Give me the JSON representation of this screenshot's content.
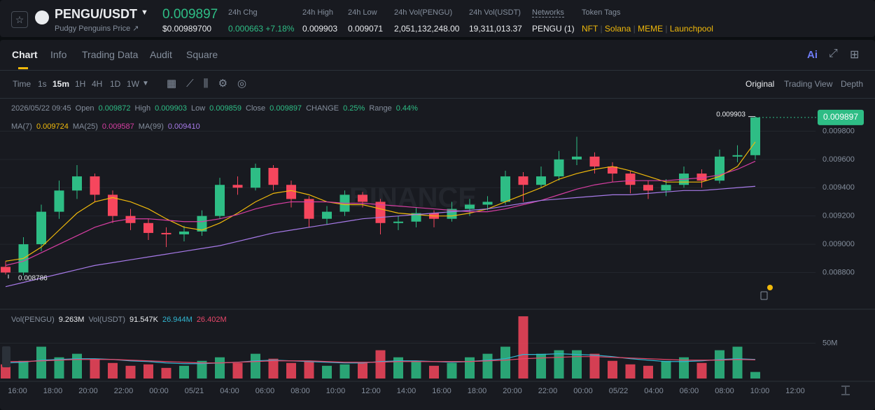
{
  "header": {
    "pair": "PENGU/USDT",
    "name_link": "Pudgy Penguins Price",
    "price": "0.009897",
    "price_usd": "$0.00989700",
    "stats": [
      {
        "label": "24h Chg",
        "value": "0.000663 +7.18%"
      },
      {
        "label": "24h High",
        "value": "0.009903"
      },
      {
        "label": "24h Low",
        "value": "0.009071"
      },
      {
        "label": "24h Vol(PENGU)",
        "value": "2,051,132,248.00"
      },
      {
        "label": "24h Vol(USDT)",
        "value": "19,311,013.37"
      }
    ],
    "networks": {
      "label": "Networks",
      "value": "PENGU (1)"
    },
    "token_tags": {
      "label": "Token Tags",
      "items": [
        "NFT",
        "Solana",
        "MEME",
        "Launchpool"
      ]
    }
  },
  "tabs": [
    "Chart",
    "Info",
    "Trading Data",
    "Audit",
    "Square"
  ],
  "ai_button": "Ai",
  "toolbar": {
    "time_label": "Time",
    "intervals": [
      "1s",
      "15m",
      "1H",
      "4H",
      "1D",
      "1W"
    ],
    "views": [
      "Original",
      "Trading View",
      "Depth"
    ]
  },
  "chart_data": {
    "type": "candlestick",
    "watermark": "BINANCE",
    "legend": {
      "date": "2026/05/22 09:45",
      "items": [
        {
          "label": "Open",
          "value": "0.009872"
        },
        {
          "label": "High",
          "value": "0.009903"
        },
        {
          "label": "Low",
          "value": "0.009859"
        },
        {
          "label": "Close",
          "value": "0.009897"
        },
        {
          "label": "CHANGE",
          "value": "0.25%"
        },
        {
          "label": "Range",
          "value": "0.44%"
        }
      ]
    },
    "x_labels": [
      "16:00",
      "18:00",
      "20:00",
      "22:00",
      "00:00",
      "05/21",
      "04:00",
      "06:00",
      "08:00",
      "10:00",
      "12:00",
      "14:00",
      "16:00",
      "18:00",
      "20:00",
      "22:00",
      "00:00",
      "05/22",
      "04:00",
      "06:00",
      "08:00",
      "10:00",
      "12:00"
    ],
    "open": [
      0.00884,
      0.0088,
      0.009,
      0.00923,
      0.00938,
      0.00948,
      0.00935,
      0.0092,
      0.00915,
      0.00908,
      0.00907,
      0.00909,
      0.0092,
      0.00942,
      0.0094,
      0.00954,
      0.00942,
      0.00932,
      0.00918,
      0.00923,
      0.00935,
      0.0093,
      0.00915,
      0.00916,
      0.00922,
      0.00918,
      0.00925,
      0.00928,
      0.0093,
      0.00948,
      0.00942,
      0.00948,
      0.0096,
      0.00962,
      0.00955,
      0.0095,
      0.00942,
      0.00938,
      0.00942,
      0.0095,
      0.00945,
      0.00962,
      0.00963
    ],
    "high": [
      0.00888,
      0.00905,
      0.00928,
      0.00945,
      0.00956,
      0.0095,
      0.00938,
      0.00925,
      0.00918,
      0.00912,
      0.00913,
      0.00924,
      0.00947,
      0.00948,
      0.00957,
      0.00956,
      0.00945,
      0.00934,
      0.00927,
      0.00938,
      0.00937,
      0.00932,
      0.0092,
      0.00926,
      0.00924,
      0.0093,
      0.00932,
      0.00934,
      0.00952,
      0.00951,
      0.00955,
      0.00966,
      0.00976,
      0.00965,
      0.00958,
      0.00952,
      0.00945,
      0.00946,
      0.00955,
      0.00953,
      0.00967,
      0.0097,
      0.009903
    ],
    "low": [
      0.008786,
      0.00878,
      0.00895,
      0.00918,
      0.00932,
      0.0093,
      0.00915,
      0.0091,
      0.00903,
      0.00898,
      0.00902,
      0.00906,
      0.00918,
      0.00935,
      0.00938,
      0.00938,
      0.00926,
      0.00912,
      0.00914,
      0.0092,
      0.00926,
      0.00907,
      0.0091,
      0.00912,
      0.00912,
      0.00916,
      0.0092,
      0.00924,
      0.00928,
      0.0093,
      0.0094,
      0.00945,
      0.00956,
      0.0095,
      0.00944,
      0.00936,
      0.00932,
      0.00934,
      0.0094,
      0.0094,
      0.00943,
      0.00958,
      0.0096
    ],
    "close": [
      0.0088,
      0.009,
      0.00923,
      0.00938,
      0.00948,
      0.00935,
      0.0092,
      0.00915,
      0.00908,
      0.00907,
      0.00909,
      0.0092,
      0.00942,
      0.0094,
      0.00954,
      0.00942,
      0.00932,
      0.00918,
      0.00923,
      0.00935,
      0.0093,
      0.00915,
      0.00916,
      0.00922,
      0.00918,
      0.00925,
      0.00928,
      0.0093,
      0.00948,
      0.00942,
      0.00948,
      0.0096,
      0.00962,
      0.00955,
      0.0095,
      0.00942,
      0.00938,
      0.00942,
      0.0095,
      0.00945,
      0.00962,
      0.00963,
      0.009897
    ],
    "ylim": [
      0.00855,
      0.01002
    ],
    "yticks": [
      {
        "value": 0.0088,
        "label": "0.008800"
      },
      {
        "value": 0.009,
        "label": "0.009000"
      },
      {
        "value": 0.0092,
        "label": "0.009200"
      },
      {
        "value": 0.0094,
        "label": "0.009400"
      },
      {
        "value": 0.0096,
        "label": "0.009600"
      },
      {
        "value": 0.0098,
        "label": "0.009800"
      }
    ],
    "up_color": "#2ebd85",
    "down_color": "#f6465d",
    "ma": [
      {
        "name": "MA(7)",
        "color": "#f0b90b",
        "value_label": "0.009724",
        "values": [
          0.00888,
          0.0089,
          0.00898,
          0.0091,
          0.00922,
          0.0093,
          0.00933,
          0.0093,
          0.00925,
          0.00918,
          0.00912,
          0.0091,
          0.00915,
          0.00922,
          0.0093,
          0.00936,
          0.00938,
          0.00935,
          0.0093,
          0.00928,
          0.00928,
          0.00925,
          0.00922,
          0.00921,
          0.0092,
          0.0092,
          0.00922,
          0.00925,
          0.0093,
          0.00935,
          0.0094,
          0.00946,
          0.0095,
          0.00953,
          0.00955,
          0.00952,
          0.00948,
          0.00944,
          0.00944,
          0.00944,
          0.00948,
          0.00955,
          0.009724
        ]
      },
      {
        "name": "MA(25)",
        "color": "#d63ea2",
        "value_label": "0.009587",
        "values": [
          0.00885,
          0.00888,
          0.00894,
          0.009,
          0.00906,
          0.00912,
          0.00916,
          0.00918,
          0.00918,
          0.00917,
          0.00916,
          0.00916,
          0.00918,
          0.00921,
          0.00925,
          0.00928,
          0.0093,
          0.0093,
          0.0093,
          0.00929,
          0.00929,
          0.00928,
          0.00927,
          0.00926,
          0.00925,
          0.00924,
          0.00923,
          0.00923,
          0.00925,
          0.00928,
          0.00931,
          0.00935,
          0.00939,
          0.00942,
          0.00944,
          0.00945,
          0.00945,
          0.00945,
          0.00946,
          0.00947,
          0.00949,
          0.00953,
          0.009587
        ]
      },
      {
        "name": "MA(99)",
        "color": "#a77ae8",
        "value_label": "0.009410",
        "values": [
          0.0087,
          0.00873,
          0.00876,
          0.00879,
          0.00882,
          0.00885,
          0.00887,
          0.00889,
          0.00891,
          0.00893,
          0.00895,
          0.00897,
          0.00899,
          0.00902,
          0.00905,
          0.00908,
          0.0091,
          0.00912,
          0.00914,
          0.00916,
          0.00918,
          0.00919,
          0.0092,
          0.00921,
          0.00922,
          0.00923,
          0.00924,
          0.00925,
          0.00927,
          0.00929,
          0.00931,
          0.00932,
          0.00933,
          0.00934,
          0.00935,
          0.00935,
          0.00936,
          0.00937,
          0.00938,
          0.00938,
          0.00939,
          0.0094,
          0.00941
        ]
      }
    ],
    "volume": {
      "legend": [
        {
          "label": "Vol(PENGU)",
          "value": "9.263M"
        },
        {
          "label": "Vol(USDT)",
          "value": "91.547K"
        }
      ],
      "ylim": [
        0,
        95
      ],
      "yticks": [
        {
          "value": 50,
          "label": "50M"
        }
      ],
      "values": [
        20,
        25,
        45,
        30,
        35,
        28,
        22,
        18,
        20,
        15,
        18,
        25,
        30,
        22,
        35,
        28,
        22,
        25,
        18,
        20,
        22,
        40,
        30,
        25,
        18,
        22,
        30,
        35,
        45,
        88,
        35,
        40,
        40,
        35,
        25,
        20,
        18,
        25,
        30,
        22,
        40,
        45,
        9.263
      ],
      "ma": [
        {
          "color": "#31b6d1",
          "value_label": "26.944M",
          "values": [
            22,
            23,
            26,
            27,
            28,
            28,
            27,
            25,
            24,
            22,
            21,
            21,
            22,
            23,
            25,
            26,
            25,
            24,
            23,
            22,
            22,
            24,
            25,
            25,
            24,
            23,
            24,
            26,
            28,
            34,
            34,
            35,
            34,
            33,
            31,
            28,
            26,
            24,
            24,
            25,
            27,
            28,
            26.944
          ]
        },
        {
          "color": "#e8476a",
          "value_label": "26.402M",
          "values": [
            24,
            24,
            25,
            26,
            27,
            27,
            27,
            26,
            25,
            24,
            23,
            22,
            22,
            23,
            24,
            25,
            25,
            25,
            24,
            23,
            23,
            23,
            24,
            24,
            24,
            24,
            24,
            25,
            26,
            28,
            29,
            30,
            31,
            31,
            30,
            29,
            28,
            27,
            26,
            26,
            26,
            27,
            26.402
          ]
        }
      ]
    }
  }
}
